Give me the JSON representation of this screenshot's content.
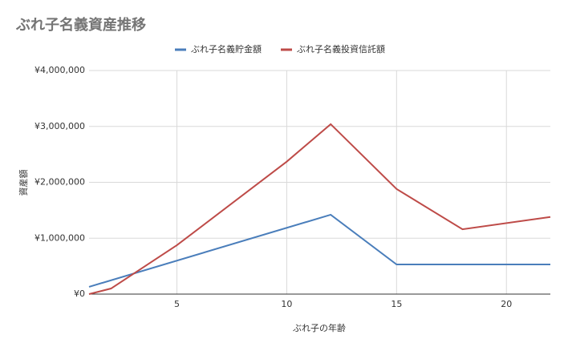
{
  "chart_data": {
    "type": "line",
    "title": "ぶれ子名義資産推移",
    "x_label": "ぶれ子の年齢",
    "y_label": "資産額",
    "series": [
      {
        "name": "ぶれ子名義貯金額",
        "color": "#4a7ebb",
        "x": [
          1,
          12,
          15,
          22
        ],
        "values": [
          130000,
          1420000,
          530000,
          530000
        ]
      },
      {
        "name": "ぶれ子名義投資信託額",
        "color": "#be4b48",
        "x": [
          1,
          2,
          5,
          10,
          12,
          15,
          18,
          22
        ],
        "values": [
          0,
          100000,
          875000,
          2370000,
          3040000,
          1880000,
          1160000,
          1380000
        ]
      }
    ],
    "xlim": [
      1,
      22
    ],
    "xticks": [
      5,
      10,
      15,
      20
    ],
    "ylim": [
      0,
      4000000
    ],
    "yticks": [
      {
        "value": 0,
        "label": "¥0"
      },
      {
        "value": 1000000,
        "label": "¥1,000,000"
      },
      {
        "value": 2000000,
        "label": "¥2,000,000"
      },
      {
        "value": 3000000,
        "label": "¥3,000,000"
      },
      {
        "value": 4000000,
        "label": "¥4,000,000"
      }
    ],
    "grid": true,
    "legend": "top"
  }
}
